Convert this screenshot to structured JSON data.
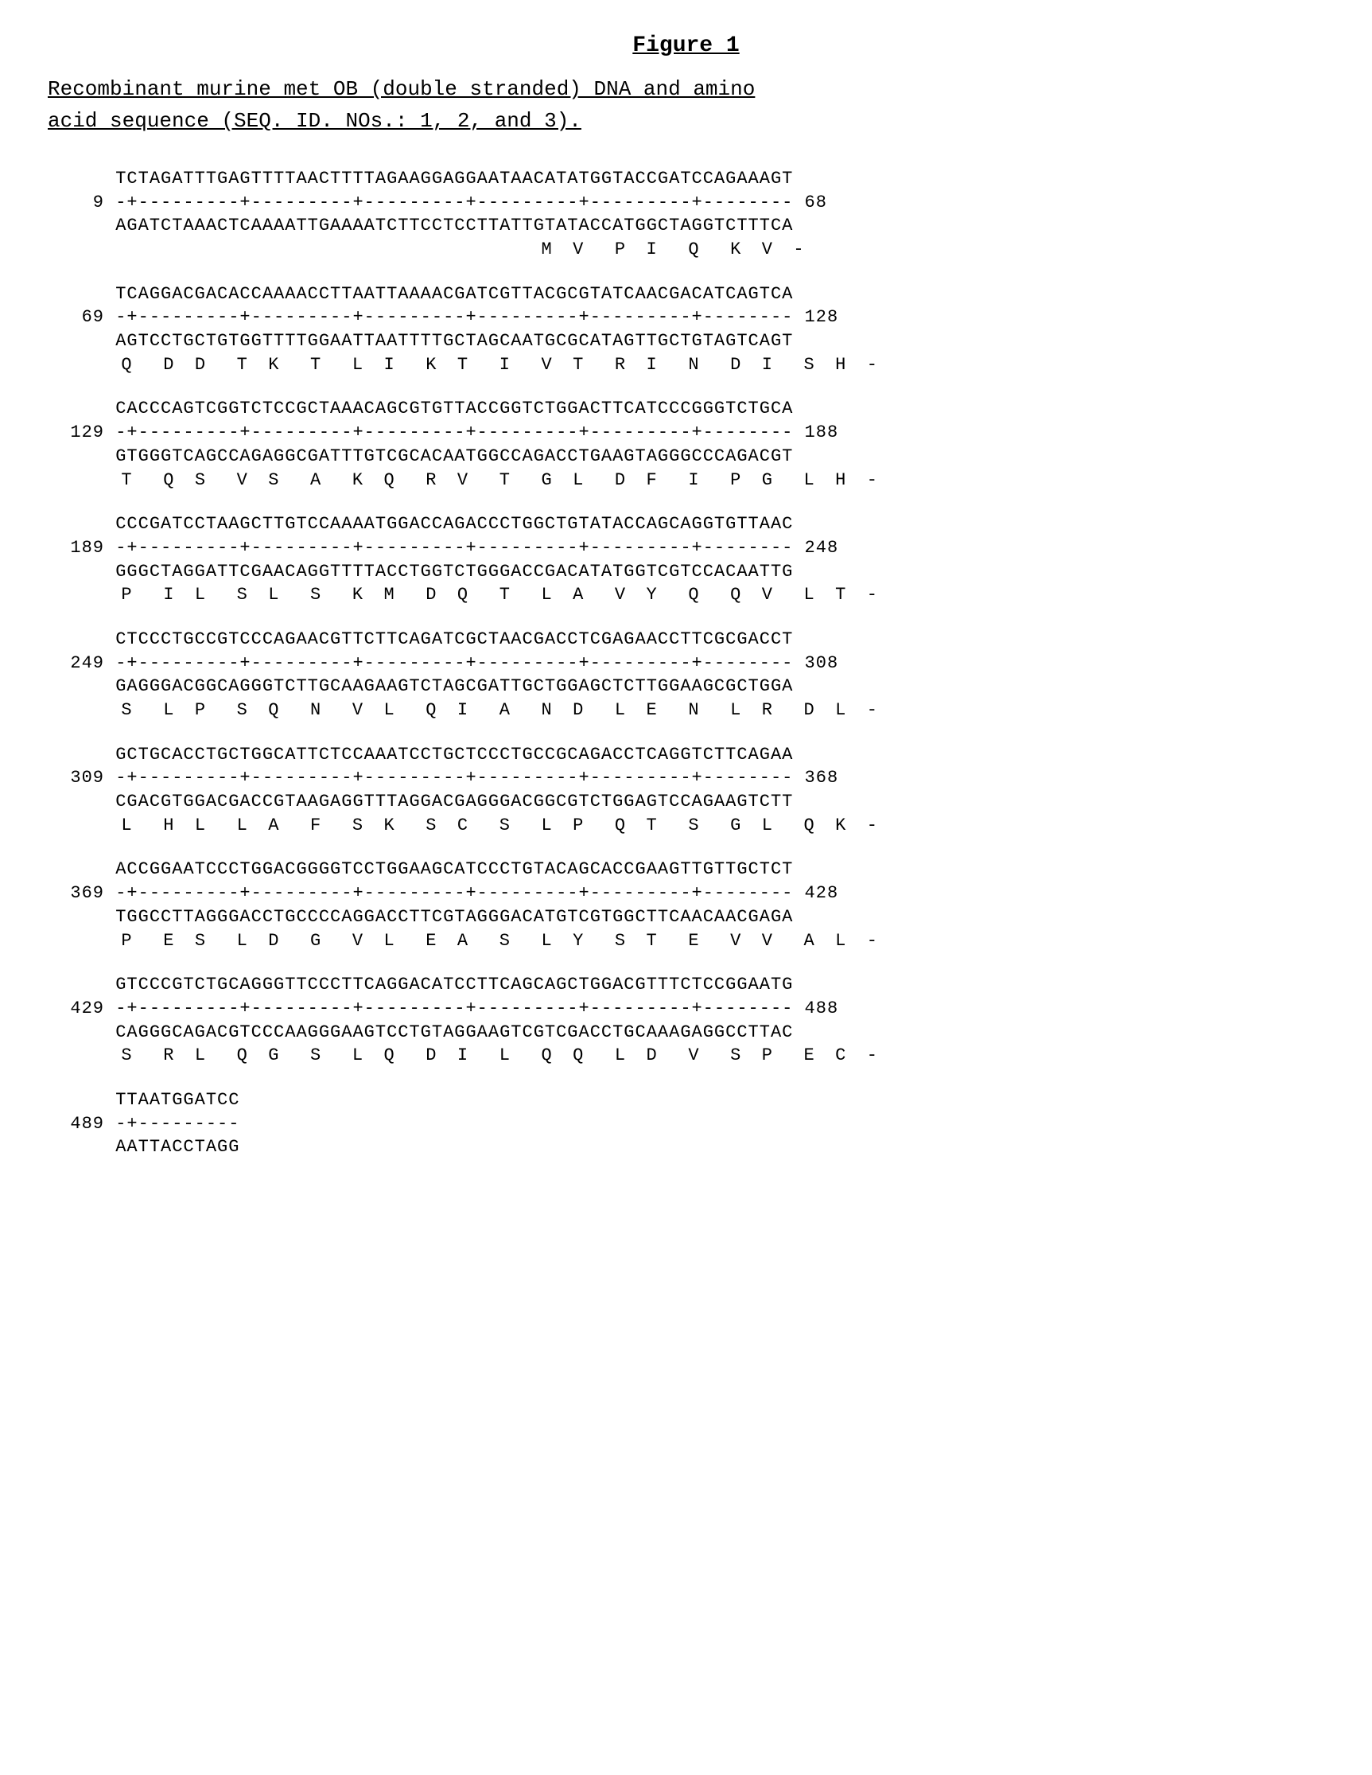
{
  "title": "Figure  1",
  "subtitle1": "Recombinant murine met OB (double stranded) DNA and amino",
  "subtitle2": "acid sequence (SEQ. ID. NOs.:  1, 2, and 3).",
  "blocks": [
    {
      "start": "9",
      "end": "68",
      "top": "TCTAGATTTGAGTTTTAACTTTTAGAAGGAGGAATAACATATGGTACCGATCCAGAAAGT",
      "ruler": "-+---------+---------+---------+---------+---------+--------",
      "bottom": "AGATCTAAACTCAAAATTGAAAATCTTCCTCCTTATTGTATACCATGGCTAGGTCTTTCA",
      "aa": "                                         M  V   P  I   Q   K  V  -"
    },
    {
      "start": "69",
      "end": "128",
      "top": "TCAGGACGACACCAAAACCTTAATTAAAACGATCGTTACGCGTATCAACGACATCAGTCA",
      "ruler": "-+---------+---------+---------+---------+---------+--------",
      "bottom": "AGTCCTGCTGTGGTTTTGGAATTAATTTTGCTAGCAATGCGCATAGTTGCTGTAGTCAGT",
      "aa": " Q   D  D   T  K   T   L  I   K  T   I   V  T   R  I   N   D  I   S  H  -"
    },
    {
      "start": "129",
      "end": "188",
      "top": "CACCCAGTCGGTCTCCGCTAAACAGCGTGTTACCGGTCTGGACTTCATCCCGGGTCTGCA",
      "ruler": "-+---------+---------+---------+---------+---------+--------",
      "bottom": "GTGGGTCAGCCAGAGGCGATTTGTCGCACAATGGCCAGACCTGAAGTAGGGCCCAGACGT",
      "aa": " T   Q  S   V  S   A   K  Q   R  V   T   G  L   D  F   I   P  G   L  H  -"
    },
    {
      "start": "189",
      "end": "248",
      "top": "CCCGATCCTAAGCTTGTCCAAAATGGACCAGACCCTGGCTGTATACCAGCAGGTGTTAAC",
      "ruler": "-+---------+---------+---------+---------+---------+--------",
      "bottom": "GGGCTAGGATTCGAACAGGTTTTACCTGGTCTGGGACCGACATATGGTCGTCCACAATTG",
      "aa": " P   I  L   S  L   S   K  M   D  Q   T   L  A   V  Y   Q   Q  V   L  T  -"
    },
    {
      "start": "249",
      "end": "308",
      "top": "CTCCCTGCCGTCCCAGAACGTTCTTCAGATCGCTAACGACCTCGAGAACCTTCGCGACCT",
      "ruler": "-+---------+---------+---------+---------+---------+--------",
      "bottom": "GAGGGACGGCAGGGTCTTGCAAGAAGTCTAGCGATTGCTGGAGCTCTTGGAAGCGCTGGA",
      "aa": " S   L  P   S  Q   N   V  L   Q  I   A   N  D   L  E   N   L  R   D  L  -"
    },
    {
      "start": "309",
      "end": "368",
      "top": "GCTGCACCTGCTGGCATTCTCCAAATCCTGCTCCCTGCCGCAGACCTCAGGTCTTCAGAA",
      "ruler": "-+---------+---------+---------+---------+---------+--------",
      "bottom": "CGACGTGGACGACCGTAAGAGGTTTAGGACGAGGGACGGCGTCTGGAGTCCAGAAGTCTT",
      "aa": " L   H  L   L  A   F   S  K   S  C   S   L  P   Q  T   S   G  L   Q  K  -"
    },
    {
      "start": "369",
      "end": "428",
      "top": "ACCGGAATCCCTGGACGGGGTCCTGGAAGCATCCCTGTACAGCACCGAAGTTGTTGCTCT",
      "ruler": "-+---------+---------+---------+---------+---------+--------",
      "bottom": "TGGCCTTAGGGACCTGCCCCAGGACCTTCGTAGGGACATGTCGTGGCTTCAACAACGAGA",
      "aa": " P   E  S   L  D   G   V  L   E  A   S   L  Y   S  T   E   V  V   A  L  -"
    },
    {
      "start": "429",
      "end": "488",
      "top": "GTCCCGTCTGCAGGGTTCCCTTCAGGACATCCTTCAGCAGCTGGACGTTTCTCCGGAATG",
      "ruler": "-+---------+---------+---------+---------+---------+--------",
      "bottom": "CAGGGCAGACGTCCCAAGGGAAGTCCTGTAGGAAGTCGTCGACCTGCAAAGAGGCCTTAC",
      "aa": " S   R  L   Q  G   S   L  Q   D  I   L   Q  Q   L  D   V   S  P   E  C  -"
    },
    {
      "start": "489",
      "end": "",
      "top": "TTAATGGATCC",
      "ruler": "-+---------",
      "bottom": "AATTACCTAGG",
      "aa": ""
    }
  ],
  "fontFamily": "Courier New",
  "background": "#ffffff",
  "textColor": "#000000"
}
